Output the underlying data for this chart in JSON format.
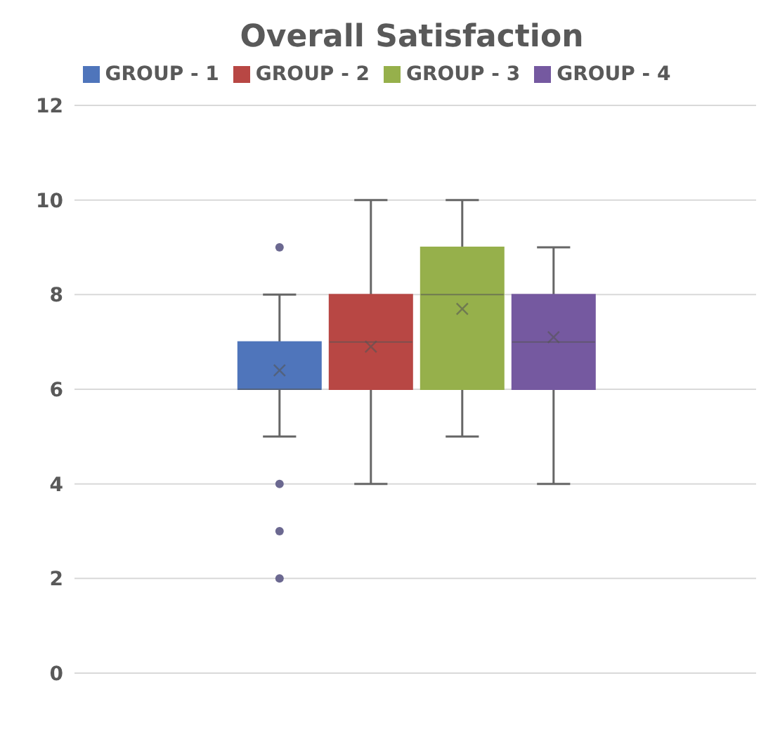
{
  "chart_data": {
    "type": "box",
    "title": "Overall Satisfaction",
    "categories": [
      null
    ],
    "series": [
      {
        "name": "GROUP - 1",
        "color": "#4f75bb",
        "boxes": [
          {
            "low": 5,
            "q1": 6,
            "median": 6,
            "q3": 7,
            "high": 8,
            "mean": 6.4,
            "outliers": [
              9,
              4,
              3,
              2
            ]
          }
        ]
      },
      {
        "name": "GROUP - 2",
        "color": "#b84744",
        "boxes": [
          {
            "low": 4,
            "q1": 6,
            "median": 7,
            "q3": 8,
            "high": 10,
            "mean": 6.9
          }
        ]
      },
      {
        "name": "GROUP - 3",
        "color": "#96b04b",
        "boxes": [
          {
            "low": 5,
            "q1": 6,
            "median": 8,
            "q3": 9,
            "high": 10,
            "mean": 7.7
          }
        ]
      },
      {
        "name": "GROUP - 4",
        "color": "#7559a0",
        "boxes": [
          {
            "low": 4,
            "q1": 6,
            "median": 7,
            "q3": 8,
            "high": 9,
            "mean": 7.1
          }
        ]
      }
    ],
    "ylim": [
      0,
      12
    ],
    "yticks": [
      0,
      2,
      4,
      6,
      8,
      10,
      12
    ],
    "grid": "y",
    "legend": "top"
  }
}
